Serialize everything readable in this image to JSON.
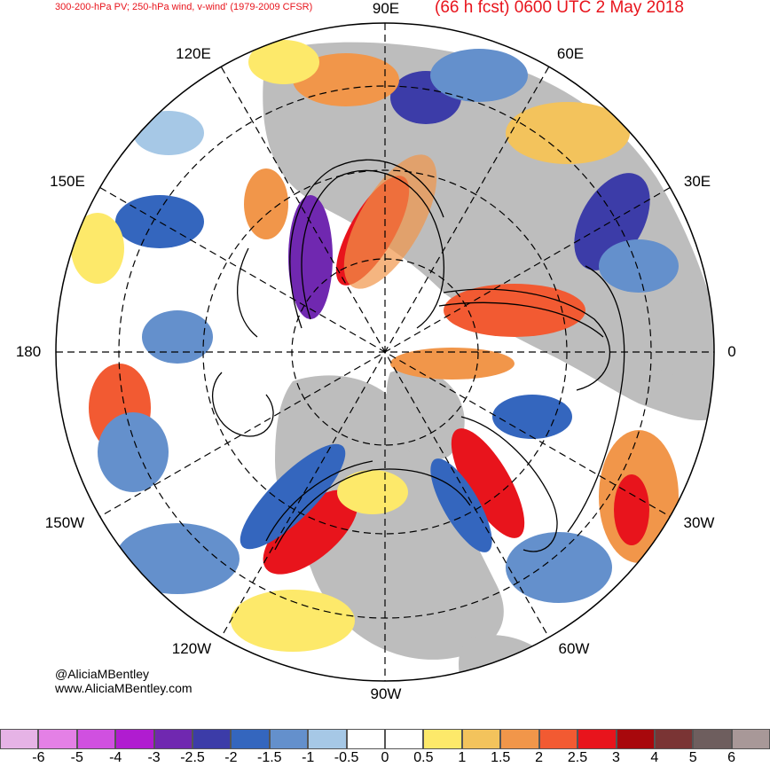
{
  "header": {
    "left_title": "300-200-hPa PV; 250-hPa wind, v-wind' (1979-2009 CFSR)",
    "right_title": "(66 h fcst) 0600 UTC 2 May 2018"
  },
  "credits": {
    "handle": "@AliciaMBentley",
    "website": "www.AliciaMBentley.com"
  },
  "longitude_labels": {
    "n90e": "90E",
    "n60e": "60E",
    "n30e": "30E",
    "n0": "0",
    "n30w": "30W",
    "n60w": "60W",
    "n90w": "90W",
    "n120w": "120W",
    "n150w": "150W",
    "n180": "180",
    "n150e": "150E",
    "n120e": "120E"
  },
  "colors": {
    "title": "#e8141c",
    "land": "#bdbdbd",
    "ocean": "#ffffff"
  },
  "colorbar": {
    "swatches": [
      "#e6b3e6",
      "#e480e6",
      "#d050e0",
      "#b01cd0",
      "#7028b0",
      "#3c3ca8",
      "#3466be",
      "#6490cc",
      "#a6c8e6",
      "#ffffff",
      "#ffffff",
      "#fde96a",
      "#f3c35c",
      "#f1964a",
      "#f25a32",
      "#e8141c",
      "#a8080c",
      "#7a3434",
      "#6e5e5e",
      "#a89898"
    ],
    "ticks": [
      "-6",
      "-5",
      "-4",
      "-3",
      "-2.5",
      "-2",
      "-1.5",
      "-1",
      "-0.5",
      "0",
      "0.5",
      "1",
      "1.5",
      "2",
      "2.5",
      "3",
      "4",
      "5",
      "6"
    ]
  }
}
